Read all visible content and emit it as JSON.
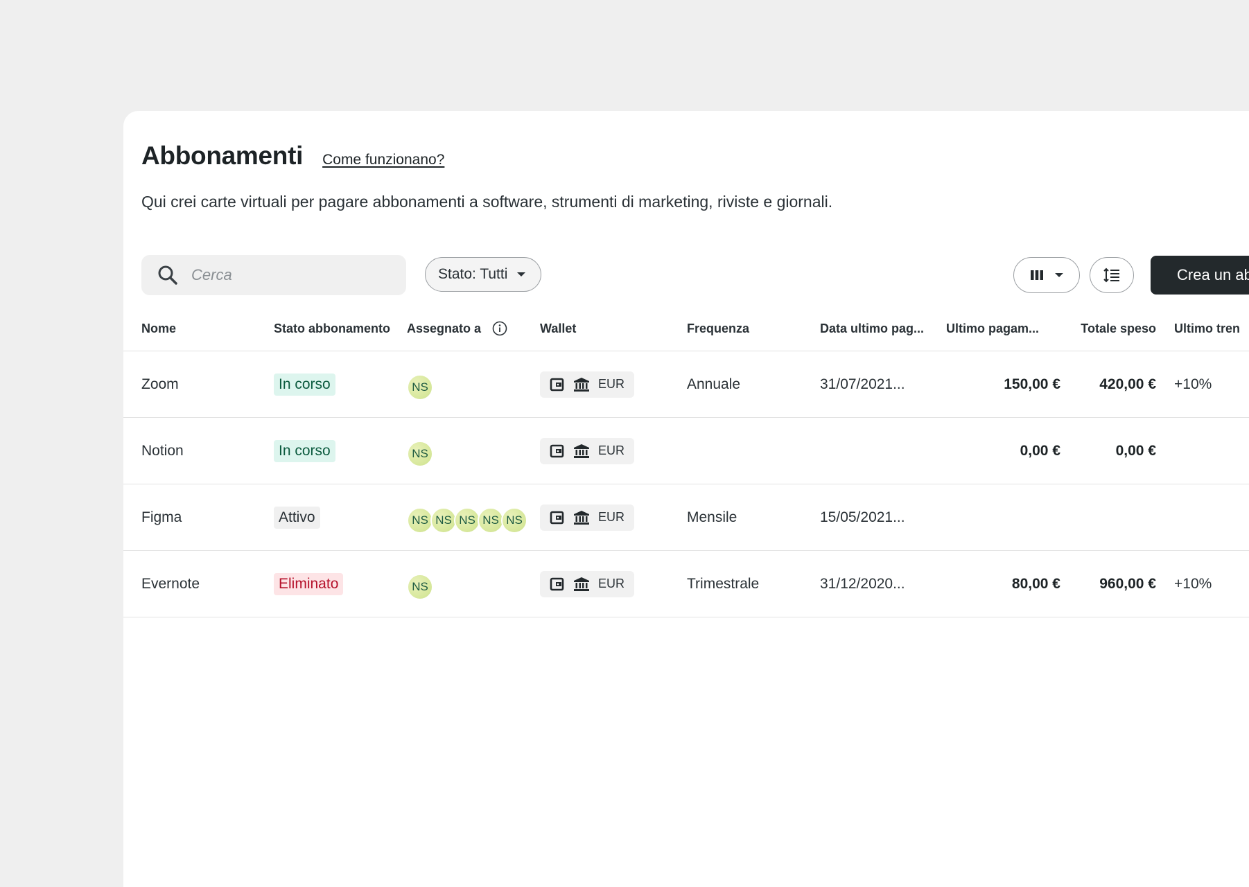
{
  "header": {
    "title": "Abbonamenti",
    "help_link": "Come funzionano?",
    "subtitle": "Qui crei carte virtuali per pagare abbonamenti a software, strumenti di marketing, riviste e giornali."
  },
  "toolbar": {
    "search_placeholder": "Cerca",
    "status_filter": "Stato: Tutti",
    "create_button": "Crea un ab"
  },
  "table": {
    "columns": [
      "Nome",
      "Stato abbonamento",
      "Assegnato a",
      "Wallet",
      "Frequenza",
      "Data ultimo pag...",
      "Ultimo pagam...",
      "Totale speso",
      "Ultimo tren"
    ],
    "rows": [
      {
        "name": "Zoom",
        "status": "In corso",
        "avatars": [
          "NS"
        ],
        "wallet_currency": "EUR",
        "frequency": "Annuale",
        "last_payment_date": "31/07/2021...",
        "last_payment": "150,00 €",
        "total_spent": "420,00 €",
        "trend": "+10%"
      },
      {
        "name": "Notion",
        "status": "In corso",
        "avatars": [
          "NS"
        ],
        "wallet_currency": "EUR",
        "frequency": "",
        "last_payment_date": "",
        "last_payment": "0,00 €",
        "total_spent": "0,00 €",
        "trend": ""
      },
      {
        "name": "Figma",
        "status": "Attivo",
        "avatars": [
          "NS",
          "NS",
          "NS",
          "NS",
          "NS"
        ],
        "wallet_currency": "EUR",
        "frequency": "Mensile",
        "last_payment_date": "15/05/2021...",
        "last_payment": "",
        "total_spent": "",
        "trend": ""
      },
      {
        "name": "Evernote",
        "status": "Eliminato",
        "avatars": [
          "NS"
        ],
        "wallet_currency": "EUR",
        "frequency": "Trimestrale",
        "last_payment_date": "31/12/2020...",
        "last_payment": "80,00 €",
        "total_spent": "960,00 €",
        "trend": "+10%"
      }
    ]
  },
  "status_styles": {
    "In corso": "st-green",
    "Attivo": "st-gray",
    "Eliminato": "st-red"
  },
  "colors": {
    "page_background": "#efefef",
    "primary_button": "#23292c",
    "status_active_bg": "#ddf5ee",
    "status_deleted_bg": "#fde4e6",
    "avatar": "#d6e79a"
  }
}
